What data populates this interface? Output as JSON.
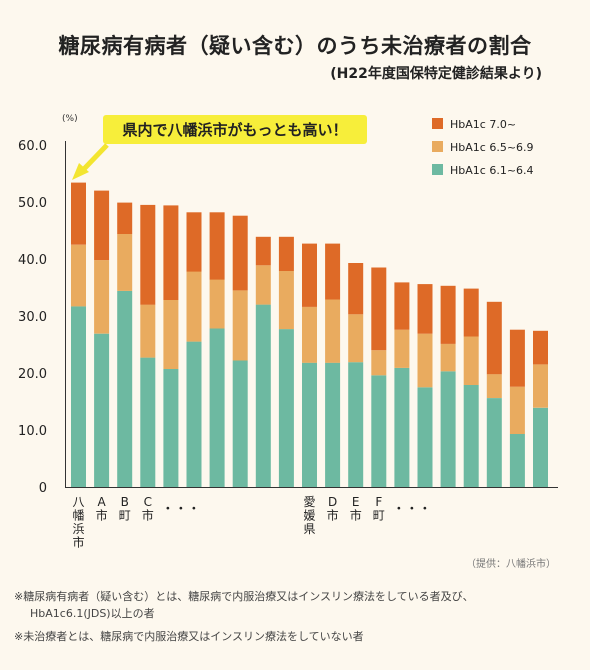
{
  "title": "糖尿病有病者（疑い含む）のうち未治療者の割合",
  "subtitle": "(H22年度国保特定健診結果より)",
  "callout": "県内で八幡浜市がもっとも高い！",
  "source": "（提供：八幡浜市）",
  "notes": {
    "line1": "※糖尿病有病者（疑い含む）とは、糖尿病で内服治療又はインスリン療法をしている者及び、",
    "line2": "HbA1c6.1(JDS)以上の者",
    "line3": "※未治療者とは、糖尿病で内服治療又はインスリン療法をしていない者"
  },
  "colors": {
    "low": "#6db9a1",
    "mid": "#e9ab5f",
    "high": "#de6a27",
    "callout_bg": "#f7ee3a",
    "callout_arrow": "#f3e530"
  },
  "chart_data": {
    "type": "bar",
    "stacked": true,
    "ylabel": "(%)",
    "ylim": [
      0,
      60
    ],
    "yticks": [
      "0",
      "10.0",
      "20.0",
      "30.0",
      "40.0",
      "50.0",
      "60.0"
    ],
    "grid": false,
    "legend_position": "top-right",
    "categories": [
      "八幡浜市",
      "A市",
      "B町",
      "C市",
      "・・・",
      "",
      "",
      "",
      "",
      "",
      "愛媛県",
      "D市",
      "E市",
      "F町",
      "・・・",
      "",
      "",
      "",
      "",
      "",
      ""
    ],
    "series": [
      {
        "name": "HbA1c 6.1~6.4",
        "color": "#6db9a1",
        "values": [
          31.7,
          26.9,
          34.4,
          22.7,
          20.7,
          25.5,
          27.8,
          22.2,
          32.0,
          27.7,
          21.8,
          21.8,
          21.9,
          19.6,
          20.9,
          17.5,
          20.3,
          17.9,
          15.6,
          9.3,
          13.9
        ]
      },
      {
        "name": "HbA1c 6.5~6.9",
        "color": "#e9ab5f",
        "values": [
          10.8,
          12.9,
          10.0,
          9.3,
          12.1,
          12.3,
          8.6,
          12.3,
          6.9,
          10.2,
          9.8,
          11.1,
          8.4,
          4.4,
          6.7,
          9.4,
          4.8,
          8.5,
          4.2,
          8.3,
          7.6
        ]
      },
      {
        "name": "HbA1c 7.0~",
        "color": "#de6a27",
        "values": [
          10.9,
          12.2,
          5.5,
          17.5,
          16.6,
          10.4,
          11.8,
          13.1,
          5.0,
          6.0,
          11.1,
          9.8,
          9.0,
          14.5,
          8.3,
          8.7,
          10.2,
          8.4,
          12.7,
          10.0,
          5.9
        ]
      }
    ]
  }
}
